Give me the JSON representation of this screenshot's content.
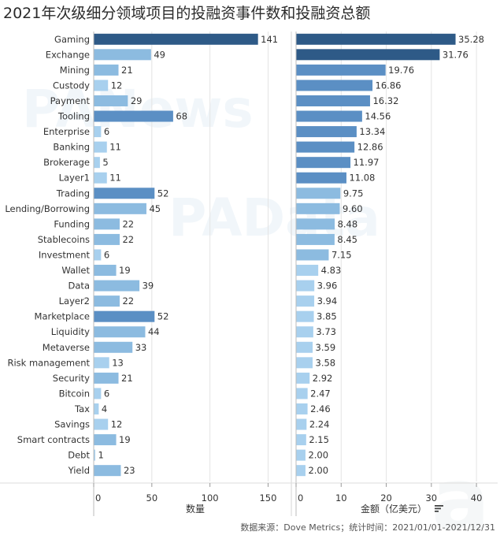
{
  "title": "2021年次级细分领域项目的投融资事件数和投融资总额",
  "source": "数据来源：Dove Metrics；统计时间：2021/01/01-2021/12/31",
  "watermarks": [
    "PANews",
    "PAData"
  ],
  "colors": {
    "dark": "#2e5a87",
    "mid": "#5b8fc4",
    "light": "#8cbbe0",
    "lighter": "#a8d0ee",
    "text": "#333333",
    "grid": "#e4e4e4",
    "sort_icon": "#444444"
  },
  "chart_data": [
    {
      "type": "bar",
      "orientation": "horizontal",
      "categories": [
        "Gaming",
        "Exchange",
        "Mining",
        "Custody",
        "Payment",
        "Tooling",
        "Enterprise",
        "Banking",
        "Brokerage",
        "Layer1",
        "Trading",
        "Lending/Borrowing",
        "Funding",
        "Stablecoins",
        "Investment",
        "Wallet",
        "Data",
        "Layer2",
        "Marketplace",
        "Liquidity",
        "Metaverse",
        "Risk management",
        "Security",
        "Bitcoin",
        "Tax",
        "Savings",
        "Smart contracts",
        "Debt",
        "Yield"
      ],
      "values": [
        141,
        49,
        21,
        12,
        29,
        68,
        6,
        11,
        5,
        11,
        52,
        45,
        22,
        22,
        6,
        19,
        39,
        22,
        52,
        44,
        33,
        13,
        21,
        6,
        4,
        12,
        19,
        1,
        23
      ],
      "xlabel": "数量",
      "xlim": [
        0,
        170
      ],
      "ticks": [
        0,
        50,
        100,
        150
      ],
      "grid": true
    },
    {
      "type": "bar",
      "orientation": "horizontal",
      "categories": [
        "Gaming",
        "Exchange",
        "Mining",
        "Custody",
        "Payment",
        "Tooling",
        "Enterprise",
        "Banking",
        "Brokerage",
        "Layer1",
        "Trading",
        "Lending/Borrowing",
        "Funding",
        "Stablecoins",
        "Investment",
        "Wallet",
        "Data",
        "Layer2",
        "Marketplace",
        "Liquidity",
        "Metaverse",
        "Risk management",
        "Security",
        "Bitcoin",
        "Tax",
        "Savings",
        "Smart contracts",
        "Debt",
        "Yield"
      ],
      "values": [
        35.28,
        31.76,
        19.76,
        16.86,
        16.32,
        14.56,
        13.34,
        12.86,
        11.97,
        11.08,
        9.75,
        9.6,
        8.48,
        8.45,
        7.15,
        4.83,
        3.96,
        3.94,
        3.85,
        3.73,
        3.59,
        3.58,
        2.92,
        2.47,
        2.46,
        2.24,
        2.15,
        2.0,
        2.0
      ],
      "labels": [
        "35.28",
        "31.76",
        "19.76",
        "16.86",
        "16.32",
        "14.56",
        "13.34",
        "12.86",
        "11.97",
        "11.08",
        "9.75",
        "9.60",
        "8.48",
        "8.45",
        "7.15",
        "4.83",
        "3.96",
        "3.94",
        "3.85",
        "3.73",
        "3.59",
        "3.58",
        "2.92",
        "2.47",
        "2.46",
        "2.24",
        "2.15",
        "2.00",
        "2.00"
      ],
      "xlabel": "金额（亿美元）",
      "xlim": [
        0,
        44
      ],
      "ticks": [
        0,
        10,
        20,
        30,
        40
      ],
      "grid": true
    }
  ]
}
